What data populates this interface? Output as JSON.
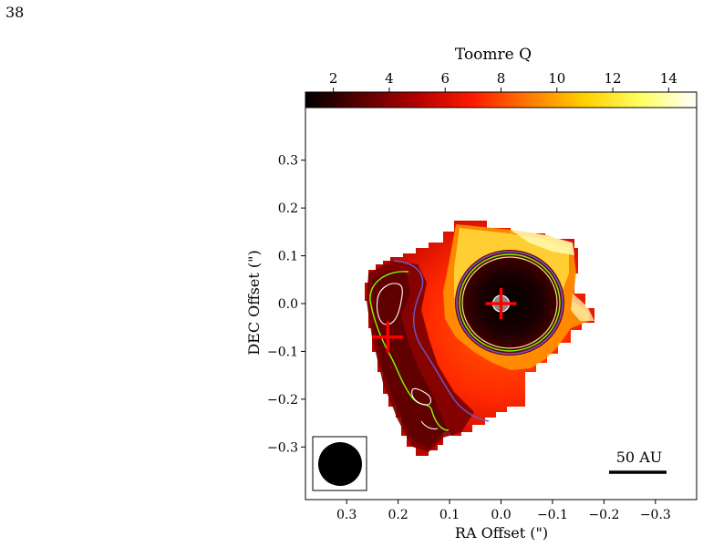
{
  "page": {
    "number": "38"
  },
  "colorbar": {
    "label": "Toomre Q",
    "ticks": [
      "2",
      "4",
      "6",
      "8",
      "10",
      "12",
      "14"
    ],
    "tick_values": [
      2,
      4,
      6,
      8,
      10,
      12,
      14
    ],
    "range": [
      1,
      15
    ],
    "colormap": "hot",
    "stops": [
      "#000000",
      "#5a0000",
      "#b30000",
      "#ff1a00",
      "#ff7a00",
      "#ffd000",
      "#ffff60",
      "#ffffff"
    ]
  },
  "chart_data": {
    "type": "heatmap",
    "title": "",
    "xlabel": "RA Offset (\")",
    "ylabel": "DEC Offset (\")",
    "x_inverted": true,
    "xlim": [
      0.38,
      -0.38
    ],
    "ylim": [
      -0.41,
      0.41
    ],
    "x_ticks": [
      {
        "value": 0.3,
        "label": "0.3"
      },
      {
        "value": 0.2,
        "label": "0.2"
      },
      {
        "value": 0.1,
        "label": "0.1"
      },
      {
        "value": 0.0,
        "label": "0.0"
      },
      {
        "value": -0.1,
        "label": "−0.1"
      },
      {
        "value": -0.2,
        "label": "−0.2"
      },
      {
        "value": -0.3,
        "label": "−0.3"
      }
    ],
    "y_ticks": [
      {
        "value": 0.3,
        "label": "0.3"
      },
      {
        "value": 0.2,
        "label": "0.2"
      },
      {
        "value": 0.1,
        "label": "0.1"
      },
      {
        "value": 0.0,
        "label": "0.0"
      },
      {
        "value": -0.1,
        "label": "−0.1"
      },
      {
        "value": -0.2,
        "label": "−0.2"
      },
      {
        "value": -0.3,
        "label": "−0.3"
      }
    ],
    "grid": false,
    "scale_bar": {
      "label": "50 AU"
    },
    "beam": {
      "location": "bottom-left"
    },
    "markers": [
      {
        "kind": "source-cross",
        "ra": 0.0,
        "dec": 0.0,
        "color": "#ff0000"
      },
      {
        "kind": "source-cross",
        "ra": 0.22,
        "dec": -0.07,
        "color": "#ff0000"
      }
    ],
    "contours": [
      {
        "name": "",
        "color": "#6a5acd"
      },
      {
        "name": "",
        "color": "#7fff00"
      },
      {
        "name": "",
        "color": "#f0e68c"
      }
    ]
  }
}
